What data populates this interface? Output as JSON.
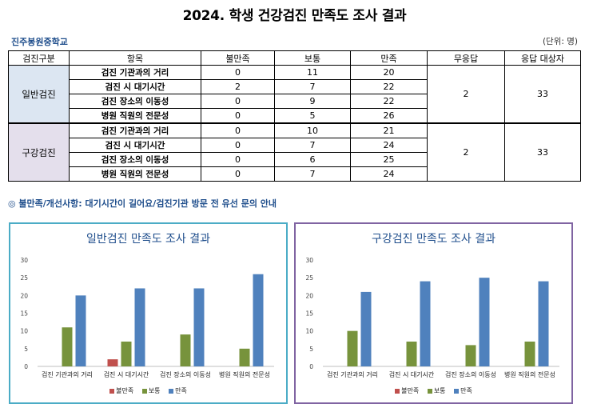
{
  "title": "2024. 학생 건강검진 만족도 조사 결과",
  "school": "진주봉원중학교",
  "unit": "(단위: 명)",
  "table": {
    "headers": [
      "검진구분",
      "항목",
      "불만족",
      "보통",
      "만족",
      "무응답",
      "응답 대상자"
    ],
    "groups": [
      {
        "category": "일반검진",
        "rows": [
          {
            "item": "검진 기관과의 거리",
            "dissatisfied": "0",
            "normal": "11",
            "satisfied": "20"
          },
          {
            "item": "검진 시 대기시간",
            "dissatisfied": "2",
            "normal": "7",
            "satisfied": "22"
          },
          {
            "item": "검진 장소의 이동성",
            "dissatisfied": "0",
            "normal": "9",
            "satisfied": "22"
          },
          {
            "item": "병원 직원의 전문성",
            "dissatisfied": "0",
            "normal": "5",
            "satisfied": "26"
          }
        ],
        "no_response": "2",
        "respondents": "33"
      },
      {
        "category": "구강검진",
        "rows": [
          {
            "item": "검진 기관과의 거리",
            "dissatisfied": "0",
            "normal": "10",
            "satisfied": "21"
          },
          {
            "item": "검진 시 대기시간",
            "dissatisfied": "0",
            "normal": "7",
            "satisfied": "24"
          },
          {
            "item": "검진 장소의 이동성",
            "dissatisfied": "0",
            "normal": "6",
            "satisfied": "25"
          },
          {
            "item": "병원 직원의 전문성",
            "dissatisfied": "0",
            "normal": "7",
            "satisfied": "24"
          }
        ],
        "no_response": "2",
        "respondents": "33"
      }
    ]
  },
  "note": "◎ 불만족/개선사항: 대기시간이 길어요/검진기관 방문 전 유선 문의 안내",
  "colors": {
    "dissatisfied": "#c0504d",
    "normal": "#77933c",
    "satisfied": "#4f81bd",
    "general_border": "#4bacc6",
    "oral_border": "#8064a2"
  },
  "chart_data": [
    {
      "type": "bar",
      "title": "일반검진 만족도 조사 결과",
      "categories": [
        "검진 기관과의 거리",
        "검진 시 대기시간",
        "검진 장소의 이동성",
        "병원 직원의 전문성"
      ],
      "series": [
        {
          "name": "불만족",
          "values": [
            0,
            2,
            0,
            0
          ]
        },
        {
          "name": "보통",
          "values": [
            11,
            7,
            9,
            5
          ]
        },
        {
          "name": "만족",
          "values": [
            20,
            22,
            22,
            26
          ]
        }
      ],
      "ylim": [
        0,
        30
      ],
      "yticks": [
        0,
        5,
        10,
        15,
        20,
        25,
        30
      ],
      "legend": "bottom",
      "grid": false
    },
    {
      "type": "bar",
      "title": "구강검진 만족도 조사 결과",
      "categories": [
        "검진 기관과의 거리",
        "검진 시 대기시간",
        "검진 장소의 이동성",
        "병원 직원의 전문성"
      ],
      "series": [
        {
          "name": "불만족",
          "values": [
            0,
            0,
            0,
            0
          ]
        },
        {
          "name": "보통",
          "values": [
            10,
            7,
            6,
            7
          ]
        },
        {
          "name": "만족",
          "values": [
            21,
            24,
            25,
            24
          ]
        }
      ],
      "ylim": [
        0,
        30
      ],
      "yticks": [
        0,
        5,
        10,
        15,
        20,
        25,
        30
      ],
      "legend": "bottom",
      "grid": false
    }
  ]
}
